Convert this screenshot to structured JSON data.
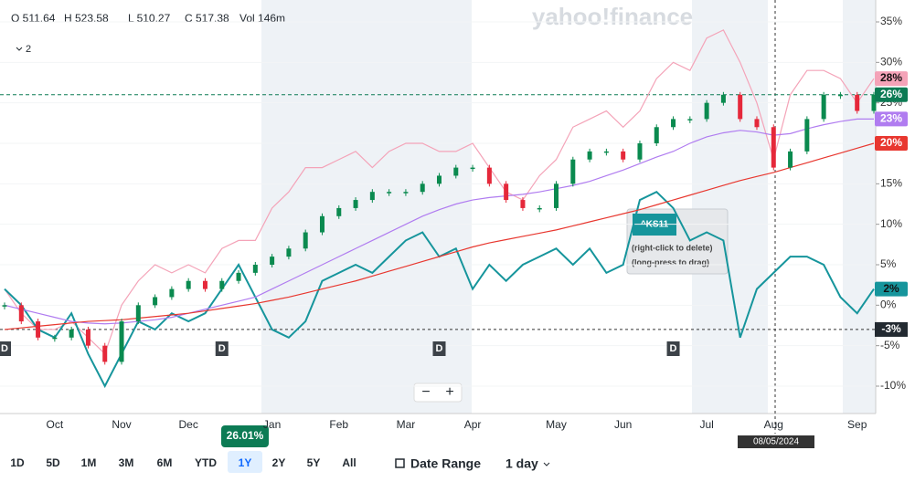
{
  "header": {
    "ohlc": [
      "O 511.64",
      "H 523.58",
      "L 510.27",
      "C 517.38",
      "Vol 146m"
    ],
    "indicator_count": "2",
    "watermark": "yahoo!finance"
  },
  "chart_data": {
    "type": "candlestick",
    "categories": [
      null,
      null,
      null,
      "Oct",
      null,
      null,
      null,
      "Nov",
      null,
      null,
      null,
      "Dec",
      null,
      null,
      null,
      null,
      "Jan",
      null,
      null,
      null,
      "Feb",
      null,
      null,
      null,
      "Mar",
      null,
      null,
      null,
      "Apr",
      null,
      null,
      null,
      null,
      "May",
      null,
      null,
      null,
      "Jun",
      null,
      null,
      null,
      null,
      "Jul",
      null,
      null,
      null,
      "Aug",
      null,
      null,
      null,
      null,
      "Sep",
      null
    ],
    "ylim": [
      -12.5,
      37.5
    ],
    "yticks": [
      {
        "value": 35,
        "label": "35%"
      },
      {
        "value": 30,
        "label": "30%"
      },
      {
        "value": 25,
        "label": "25%"
      },
      {
        "value": 20,
        "label": "20%"
      },
      {
        "value": 15,
        "label": "15%"
      },
      {
        "value": 10,
        "label": "10%"
      },
      {
        "value": 5,
        "label": "5%"
      },
      {
        "value": 0,
        "label": "0%"
      },
      {
        "value": -5,
        "label": "-5%"
      },
      {
        "value": -10,
        "label": "-10%"
      }
    ],
    "series": [
      {
        "style": "candles",
        "color": "#0a8a4f",
        "down_color": "#e5283a",
        "badge": {
          "value": 26,
          "label": "26%"
        },
        "values": [
          0,
          -2,
          -4,
          -4,
          -3,
          -5,
          -7,
          -2,
          0,
          1,
          2,
          3,
          2,
          3,
          4,
          5,
          6,
          7,
          9,
          11,
          12,
          13,
          14,
          14,
          14,
          15,
          16,
          17,
          17,
          15,
          13,
          12,
          12,
          15,
          18,
          19,
          19,
          18,
          20,
          22,
          23,
          23,
          25,
          26,
          23,
          22,
          17,
          19,
          23,
          26,
          26,
          24,
          26
        ]
      },
      {
        "style": "line",
        "color": "#f4a3b8",
        "badge": {
          "value": 28,
          "label": "28%"
        },
        "values": [
          2,
          -1,
          -3,
          -3,
          -2,
          -4,
          -6,
          0,
          3,
          5,
          4,
          5,
          4,
          7,
          8,
          8,
          12,
          14,
          17,
          17,
          18,
          19,
          17,
          19,
          20,
          20,
          19,
          19,
          20,
          17,
          14,
          13,
          16,
          18,
          22,
          23,
          24,
          22,
          24,
          28,
          30,
          29,
          33,
          34,
          30,
          25,
          18,
          26,
          29,
          29,
          28,
          25,
          28
        ]
      },
      {
        "style": "line",
        "name": "^KS11",
        "color": "#16959c",
        "badge": {
          "value": 2,
          "label": "2%"
        },
        "values": [
          2,
          0,
          -3,
          -4,
          -1,
          -6,
          -10,
          -6,
          -2,
          -3,
          -1,
          -2,
          -1,
          2,
          5,
          1,
          -3,
          -4,
          -2,
          3,
          4,
          5,
          4,
          6,
          8,
          9,
          6,
          7,
          2,
          5,
          3,
          5,
          6,
          7,
          5,
          7,
          4,
          5,
          13,
          14,
          12,
          8,
          9,
          8,
          -4,
          2,
          4,
          6,
          6,
          5,
          1,
          -1,
          2
        ]
      },
      {
        "style": "line",
        "color": "#b07cf0",
        "badge": {
          "value": 23,
          "label": "23%"
        },
        "values": [
          0,
          -0.5,
          -1,
          -1.5,
          -2,
          -2.2,
          -2.3,
          -2.2,
          -2,
          -1.8,
          -1.5,
          -1,
          -0.5,
          0,
          0.5,
          1,
          2,
          3,
          4,
          5,
          6,
          7,
          8,
          9,
          10,
          11,
          11.8,
          12.5,
          13,
          13.3,
          13.5,
          13.7,
          14,
          14.4,
          14.8,
          15.3,
          16,
          16.7,
          17.5,
          18.3,
          19,
          20,
          20.8,
          21.3,
          21.6,
          21.4,
          21,
          21.2,
          21.8,
          22.3,
          22.7,
          23,
          23
        ]
      },
      {
        "style": "line",
        "color": "#e8372f",
        "badge": {
          "value": 20,
          "label": "20%"
        },
        "values": [
          -3,
          -2.8,
          -2.6,
          -2.4,
          -2.2,
          -2,
          -1.9,
          -1.8,
          -1.6,
          -1.4,
          -1.2,
          -1,
          -0.7,
          -0.4,
          -0.1,
          0.2,
          0.6,
          1,
          1.5,
          2,
          2.5,
          3,
          3.6,
          4.2,
          4.8,
          5.4,
          6,
          6.6,
          7.2,
          7.7,
          8.1,
          8.5,
          8.9,
          9.3,
          9.8,
          10.3,
          10.8,
          11.3,
          11.8,
          12.4,
          13,
          13.6,
          14.2,
          14.8,
          15.4,
          15.9,
          16.4,
          17,
          17.6,
          18.2,
          18.8,
          19.4,
          20
        ]
      }
    ],
    "events": [
      {
        "label": "D",
        "index": 0
      },
      {
        "label": "D",
        "index": 13
      },
      {
        "label": "D",
        "index": 26
      },
      {
        "label": "D",
        "index": 40
      }
    ],
    "crosshair": {
      "y": {
        "value": -3,
        "label": "-3%"
      },
      "x_label": "08/05/2024"
    },
    "tooltip": {
      "symbol": "^KS11",
      "hints": [
        "(right-click to delete)",
        "(long-press to drag)"
      ]
    },
    "zoom": [
      "−",
      "+"
    ]
  },
  "footer": {
    "ranges": [
      "1D",
      "5D",
      "1M",
      "3M",
      "6M",
      "YTD",
      "1Y",
      "2Y",
      "5Y",
      "All"
    ],
    "selected_change": "26.01%",
    "date_range": "Date Range",
    "interval": "1 day"
  }
}
